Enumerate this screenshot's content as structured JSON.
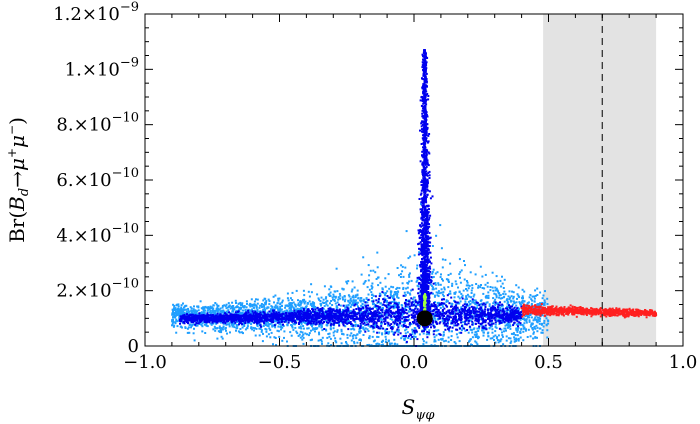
{
  "chart_data": {
    "type": "scatter",
    "xlabel": "S_{ψφ}",
    "ylabel": "Br(B_d → μ⁺μ⁻)",
    "xlim": [
      -1.0,
      1.0
    ],
    "ylim": [
      0,
      1.2e-09
    ],
    "x_ticks": [
      -1.0,
      -0.5,
      0.0,
      0.5,
      1.0
    ],
    "x_tick_labels": [
      "−1.0",
      "−0.5",
      "0.0",
      "0.5",
      "1.0"
    ],
    "y_ticks": [
      0,
      2e-10,
      4e-10,
      6e-10,
      8e-10,
      1e-09,
      1.2e-09
    ],
    "y_tick_labels": [
      {
        "mant": "0",
        "exp": ""
      },
      {
        "mant": "2.×10",
        "exp": "−10"
      },
      {
        "mant": "4.×10",
        "exp": "−10"
      },
      {
        "mant": "6.×10",
        "exp": "−10"
      },
      {
        "mant": "8.×10",
        "exp": "−10"
      },
      {
        "mant": "1.×10",
        "exp": "−9"
      },
      {
        "mant": "1.2×10",
        "exp": "−9"
      }
    ],
    "shaded_band": {
      "x_range": [
        0.48,
        0.9
      ],
      "color": "#e3e3e3"
    },
    "dashed_line": {
      "x": 0.7,
      "color": "#333333"
    },
    "series": [
      {
        "color": "#1f9fff",
        "x_range": [
          -0.9,
          0.5
        ],
        "y_center": 1.1e-10,
        "spread": "wide"
      },
      {
        "color": "#0000ee",
        "x_range": [
          -0.87,
          0.4
        ],
        "y_center": 1.1e-10,
        "spread": "narrow"
      },
      {
        "color": "#0000ee",
        "x": 0.04,
        "y_range": [
          1.1e-10,
          1.07e-09
        ],
        "spread": "spike"
      },
      {
        "color": "#ff2020",
        "x_range": [
          0.4,
          0.9
        ],
        "y_center": 1.3e-10,
        "spread": "narrow"
      },
      {
        "color": "#a0ff40",
        "x": 0.04,
        "y_range": [
          1.1e-10,
          1.9e-10
        ],
        "spread": "line"
      }
    ],
    "highlight_point": {
      "x": 0.04,
      "y": 1e-10,
      "color": "#000000"
    }
  }
}
